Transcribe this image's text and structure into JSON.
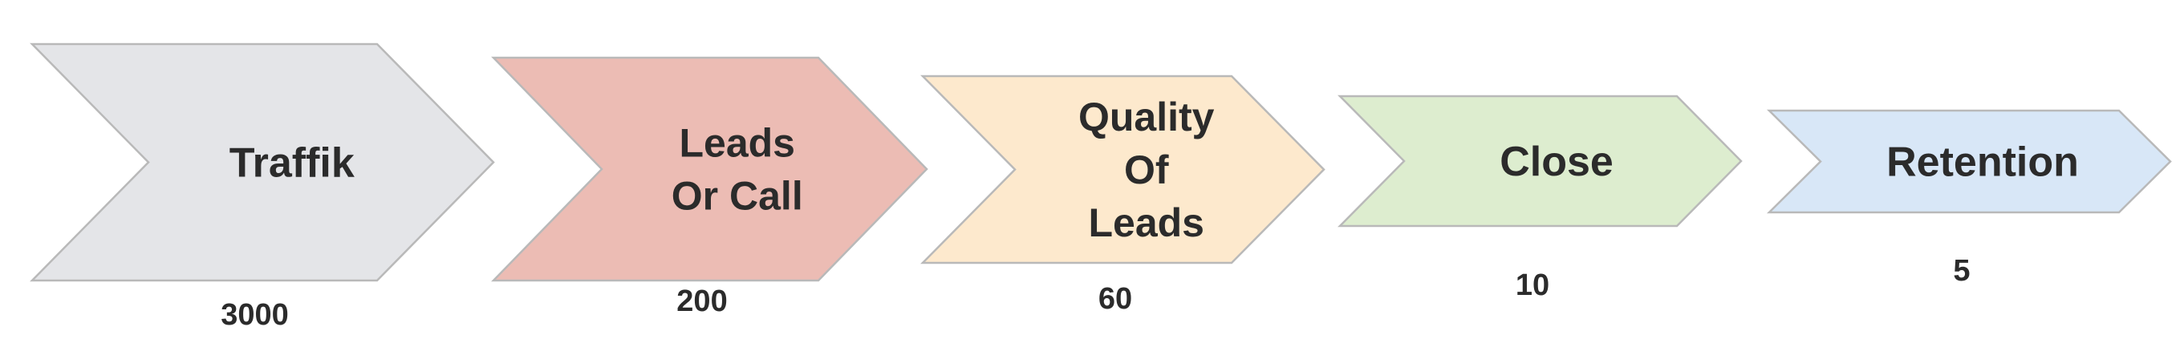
{
  "steps": [
    {
      "label_lines": [
        "Traffik"
      ],
      "value": "3000",
      "fill": "#e4e5e8"
    },
    {
      "label_lines": [
        "Leads",
        "Or Call"
      ],
      "value": "200",
      "fill": "#ecbcb4"
    },
    {
      "label_lines": [
        "Quality",
        "Of",
        "Leads"
      ],
      "value": "60",
      "fill": "#fde9cd"
    },
    {
      "label_lines": [
        "Close"
      ],
      "value": "10",
      "fill": "#ddedcf"
    },
    {
      "label_lines": [
        "Retention"
      ],
      "value": "5",
      "fill": "#d8e7f7"
    }
  ]
}
